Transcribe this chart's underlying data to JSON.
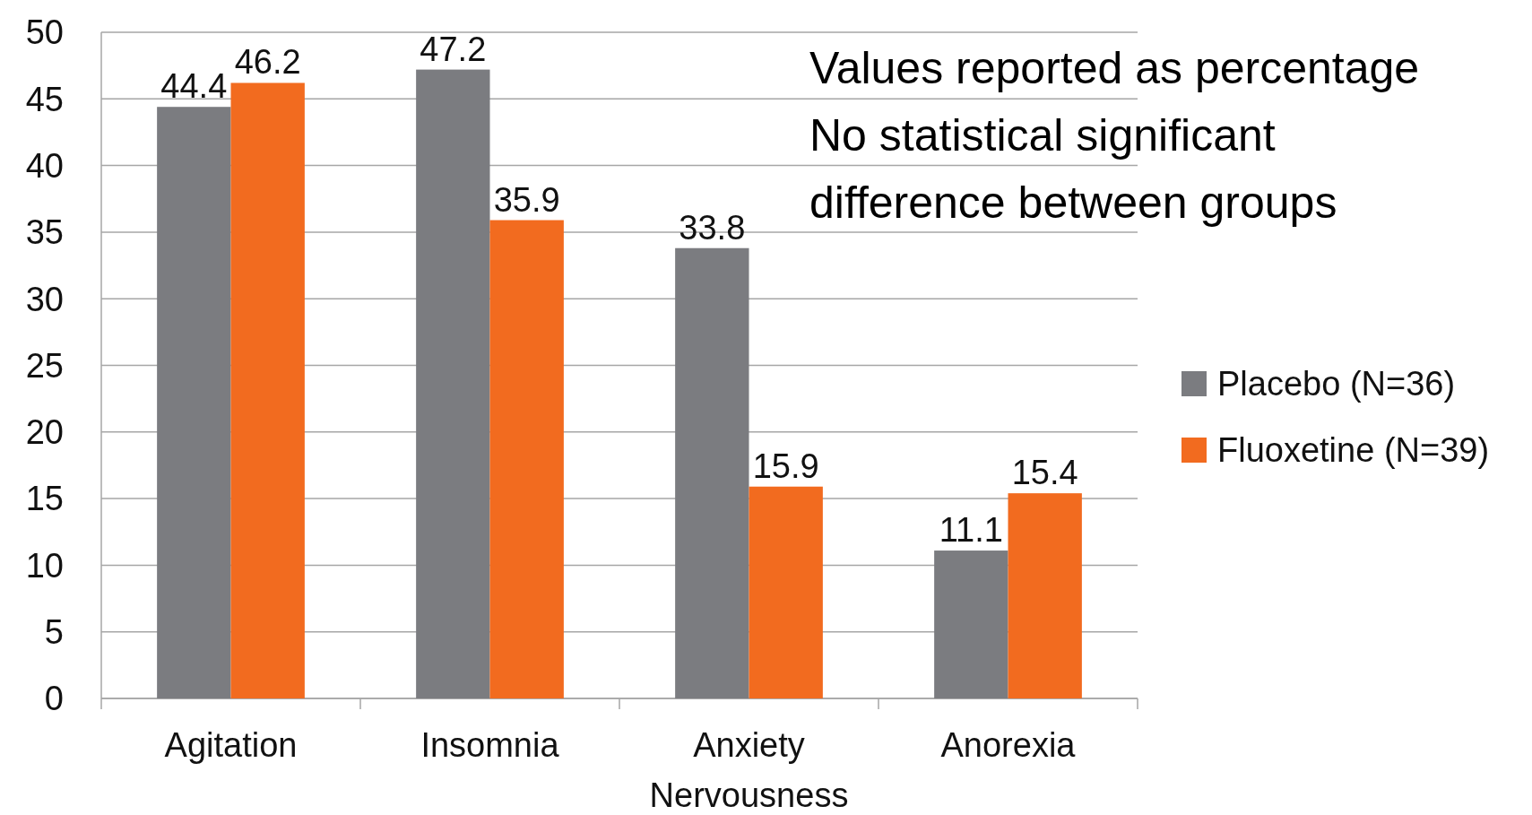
{
  "chart_data": {
    "type": "bar",
    "categories": [
      "Agitation",
      "Insomnia",
      "Anxiety Nervousness",
      "Anorexia"
    ],
    "series": [
      {
        "name": "Placebo (N=36)",
        "color": "#7b7c80",
        "values": [
          44.4,
          47.2,
          33.8,
          11.1
        ]
      },
      {
        "name": "Fluoxetine (N=39)",
        "color": "#f26b1f",
        "values": [
          46.2,
          35.9,
          15.9,
          15.4
        ]
      }
    ],
    "ylim": [
      0,
      50
    ],
    "yticks": [
      0,
      5,
      10,
      15,
      20,
      25,
      30,
      35,
      40,
      45,
      50
    ],
    "grid": "y",
    "legend": "right",
    "data_labels": true,
    "annotations": [
      "Values reported as percentage",
      "No statistical significant difference between groups"
    ]
  }
}
